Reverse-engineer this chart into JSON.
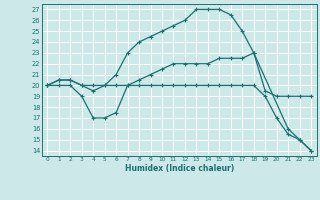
{
  "xlabel": "Humidex (Indice chaleur)",
  "bg_color": "#cce8e8",
  "line_color": "#1a7070",
  "grid_color": "#aacccc",
  "xlim": [
    -0.5,
    23.5
  ],
  "ylim": [
    13.5,
    27.5
  ],
  "xticks": [
    0,
    1,
    2,
    3,
    4,
    5,
    6,
    7,
    8,
    9,
    10,
    11,
    12,
    13,
    14,
    15,
    16,
    17,
    18,
    19,
    20,
    21,
    22,
    23
  ],
  "yticks": [
    14,
    15,
    16,
    17,
    18,
    19,
    20,
    21,
    22,
    23,
    24,
    25,
    26,
    27
  ],
  "line1_x": [
    0,
    1,
    2,
    3,
    4,
    5,
    6,
    7,
    8,
    9,
    10,
    11,
    12,
    13,
    14,
    15,
    16,
    17,
    18,
    21,
    22,
    23
  ],
  "line1_y": [
    20,
    20.5,
    20.5,
    20,
    19.5,
    20,
    21,
    23,
    24,
    24.5,
    25,
    25.5,
    26,
    27,
    27,
    27,
    26.5,
    25,
    23,
    16,
    15,
    14
  ],
  "line2_x": [
    0,
    1,
    2,
    3,
    4,
    5,
    6,
    7,
    8,
    9,
    10,
    11,
    12,
    13,
    14,
    15,
    16,
    17,
    18,
    19,
    20,
    21,
    22,
    23
  ],
  "line2_y": [
    20,
    20.5,
    20.5,
    20,
    20,
    20,
    20,
    20,
    20.5,
    21,
    21.5,
    22,
    22,
    22,
    22,
    22.5,
    22.5,
    22.5,
    23,
    19.5,
    19,
    19,
    19,
    19
  ],
  "line3_x": [
    0,
    1,
    2,
    3,
    4,
    5,
    6,
    7,
    8,
    9,
    10,
    11,
    12,
    13,
    14,
    15,
    16,
    17,
    18,
    19,
    20,
    21,
    22,
    23
  ],
  "line3_y": [
    20,
    20,
    20,
    19,
    17,
    17,
    17.5,
    20,
    20,
    20,
    20,
    20,
    20,
    20,
    20,
    20,
    20,
    20,
    20,
    19,
    17,
    15.5,
    15,
    14
  ]
}
